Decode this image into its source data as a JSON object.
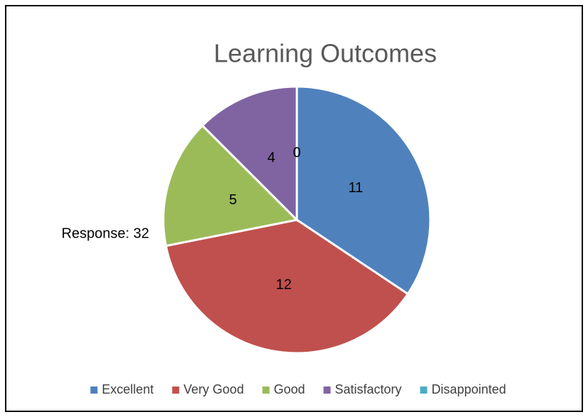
{
  "chart_data": {
    "type": "pie",
    "title": "Learning Outcomes",
    "categories": [
      "Excellent",
      "Very Good",
      "Good",
      "Satisfactory",
      "Disappointed"
    ],
    "values": [
      11,
      12,
      5,
      4,
      0
    ],
    "colors": [
      "#4f81bd",
      "#c0504d",
      "#9bbb59",
      "#8064a2",
      "#4bacc6"
    ],
    "annotation": "Response: 32",
    "legend": "bottom"
  }
}
